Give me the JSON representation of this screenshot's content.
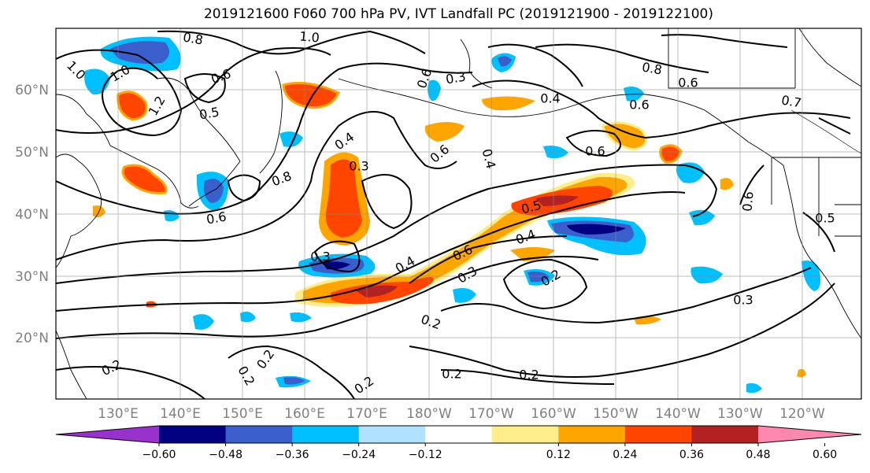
{
  "title": "2019121600 F060 700 hPa PV, IVT Landfall PC (2019121900 - 2019122100)",
  "lon_labels": [
    "130°E",
    "140°E",
    "150°E",
    "160°E",
    "170°E",
    "180°W",
    "170°W",
    "160°W",
    "150°W",
    "140°W",
    "130°W",
    "120°W"
  ],
  "lat_labels": [
    "60°N",
    "50°N",
    "40°N",
    "30°N",
    "20°N"
  ],
  "colorbar": {
    "colors": [
      "#9932cc",
      "#000080",
      "#3a5fcd",
      "#00bfff",
      "#b0e2ff",
      "#ffffff",
      "#ffec8b",
      "#ffa500",
      "#ff4500",
      "#b22222",
      "#ff88b0"
    ],
    "tick_labels": [
      "−0.60",
      "−0.48",
      "−0.36",
      "−0.24",
      "−0.12",
      "0.12",
      "0.24",
      "0.36",
      "0.48",
      "0.60"
    ]
  },
  "contour_labels": [
    {
      "text": "0.8"
    },
    {
      "text": "1.0"
    },
    {
      "text": "1.0"
    },
    {
      "text": "1.0"
    },
    {
      "text": "0.6"
    },
    {
      "text": "1.2"
    },
    {
      "text": "0.5"
    },
    {
      "text": "0.4"
    },
    {
      "text": "0.3"
    },
    {
      "text": "0.6"
    },
    {
      "text": "0.8"
    },
    {
      "text": "0.6"
    },
    {
      "text": "0.3"
    },
    {
      "text": "0.4"
    },
    {
      "text": "0.6"
    },
    {
      "text": "0.5"
    },
    {
      "text": "0.4"
    },
    {
      "text": "0.3"
    },
    {
      "text": "0.2"
    },
    {
      "text": "0.2"
    },
    {
      "text": "0.2"
    },
    {
      "text": "0.2"
    },
    {
      "text": "0.2"
    },
    {
      "text": "0.2"
    },
    {
      "text": "0.2"
    },
    {
      "text": "0.3"
    },
    {
      "text": "0.6"
    },
    {
      "text": "0.4"
    },
    {
      "text": "0.6"
    },
    {
      "text": "0.8"
    },
    {
      "text": "0.6"
    },
    {
      "text": "0.7"
    },
    {
      "text": "0.6"
    },
    {
      "text": "0.5"
    },
    {
      "text": "0.4"
    },
    {
      "text": "0.6"
    },
    {
      "text": "0.2"
    },
    {
      "text": "0.3"
    }
  ]
}
